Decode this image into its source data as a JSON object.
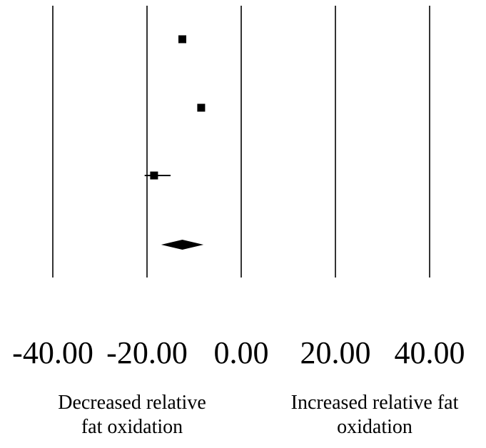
{
  "chart_data": {
    "type": "forest",
    "x_ticks": [
      -40,
      -20,
      0,
      20,
      40
    ],
    "tick_labels": [
      "-40.00",
      "-20.00",
      "0.00",
      "20.00",
      "40.00"
    ],
    "xlim": [
      -40,
      40
    ],
    "grid_lines": [
      -40,
      -20,
      0,
      20,
      40
    ],
    "studies": [
      {
        "estimate": -12.5,
        "ci": [
          -13.2,
          -11.8
        ]
      },
      {
        "estimate": -8.5,
        "ci": [
          -9.2,
          -7.8
        ]
      },
      {
        "estimate": -18.5,
        "ci": [
          -20.5,
          -15.0
        ]
      }
    ],
    "pooled": {
      "estimate": -12.5,
      "ci": [
        -17.0,
        -8.0
      ]
    },
    "left_caption": [
      "Decreased relative",
      "fat oxidation"
    ],
    "right_caption": [
      "Increased relative fat",
      "oxidation"
    ]
  }
}
